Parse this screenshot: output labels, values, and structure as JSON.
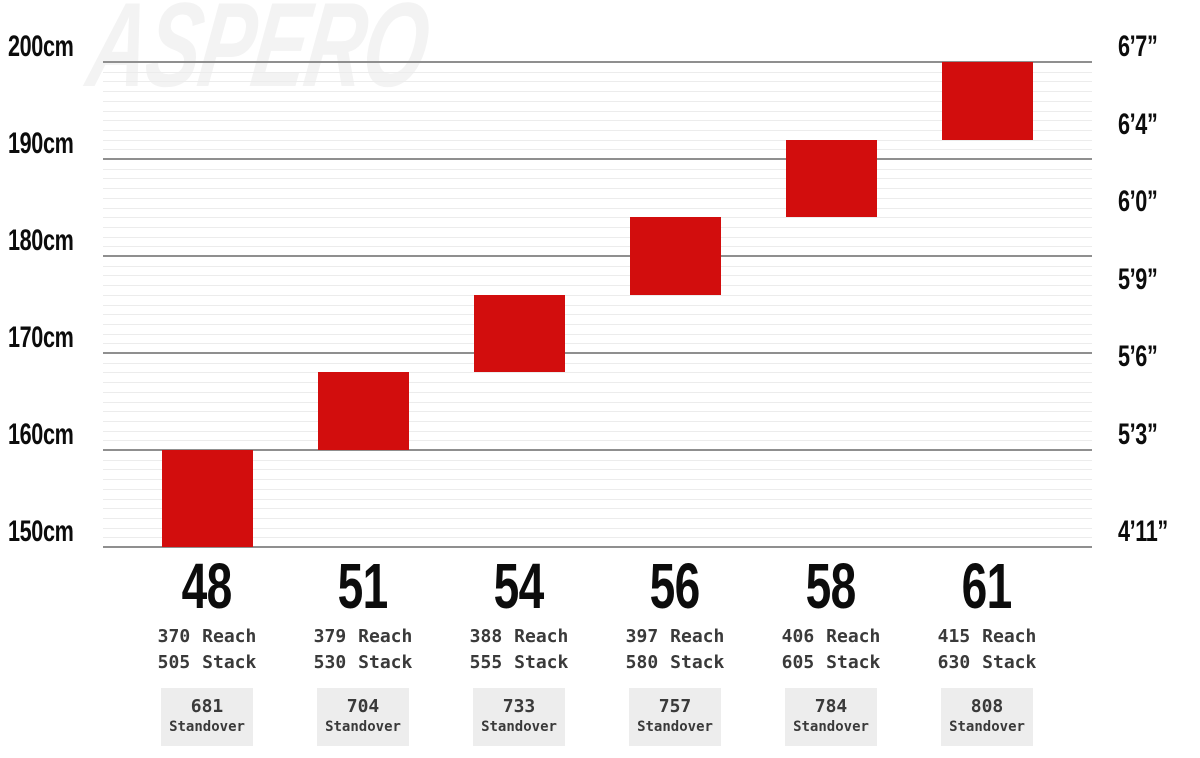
{
  "watermark": "ASPERO",
  "colors": {
    "bar_red": "#d20d0d",
    "major_grid": "#8f8f8f",
    "minor_grid": "#ececec",
    "axis_text": "#0c0c0c",
    "spec_text": "#3a3a3a",
    "standover_bg": "#ededed",
    "watermark_text": "#f3f3f3",
    "background": "#ffffff"
  },
  "chart_data": {
    "type": "bar",
    "title": "ASPERO",
    "orientation": "floating-vertical-ranges",
    "grid": "on",
    "y_axis": {
      "min_cm": 150,
      "max_cm": 200,
      "major_step_cm": 10,
      "minor_step_cm": 1,
      "left_unit": "cm",
      "right_unit": "feet-inches",
      "left_labels": [
        {
          "text": "200cm",
          "cm": 200
        },
        {
          "text": "190cm",
          "cm": 190
        },
        {
          "text": "180cm",
          "cm": 180
        },
        {
          "text": "170cm",
          "cm": 170
        },
        {
          "text": "160cm",
          "cm": 160
        },
        {
          "text": "150cm",
          "cm": 150
        }
      ],
      "right_labels": [
        {
          "text": "6’7”",
          "cm": 200
        },
        {
          "text": "6’4”",
          "cm": 192
        },
        {
          "text": "6’0”",
          "cm": 184
        },
        {
          "text": "5’9”",
          "cm": 176
        },
        {
          "text": "5’6”",
          "cm": 168
        },
        {
          "text": "5’3”",
          "cm": 160
        },
        {
          "text": "4’11”",
          "cm": 150
        }
      ]
    },
    "labels": {
      "reach": "Reach",
      "stack": "Stack",
      "standover": "Standover"
    },
    "sizes": [
      {
        "size": "48",
        "rider_height_cm": [
          150,
          160
        ],
        "reach": "370",
        "stack": "505",
        "standover": "681"
      },
      {
        "size": "51",
        "rider_height_cm": [
          160,
          168
        ],
        "reach": "379",
        "stack": "530",
        "standover": "704"
      },
      {
        "size": "54",
        "rider_height_cm": [
          168,
          176
        ],
        "reach": "388",
        "stack": "555",
        "standover": "733"
      },
      {
        "size": "56",
        "rider_height_cm": [
          176,
          184
        ],
        "reach": "397",
        "stack": "580",
        "standover": "757"
      },
      {
        "size": "58",
        "rider_height_cm": [
          184,
          192
        ],
        "reach": "406",
        "stack": "605",
        "standover": "784"
      },
      {
        "size": "61",
        "rider_height_cm": [
          192,
          200
        ],
        "reach": "415",
        "stack": "630",
        "standover": "808"
      }
    ]
  }
}
